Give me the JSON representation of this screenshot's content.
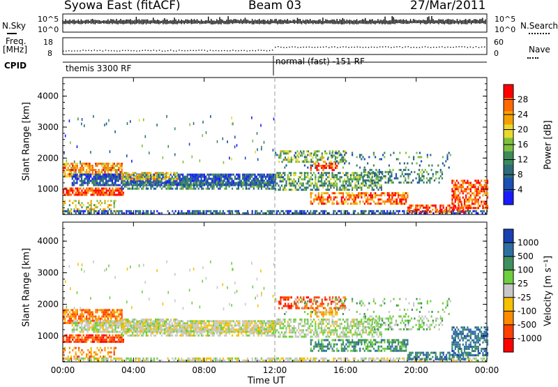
{
  "header": {
    "station": "Syowa East (fitACF)",
    "beam": "Beam 03",
    "date": "27/Mar/2011"
  },
  "strips": {
    "nsky_label": "N.Sky",
    "nsky_ticks": [
      "10^5",
      "10^0"
    ],
    "nsearch_label": "N.Search",
    "nsearch_ticks": [
      "10^5",
      "10^0"
    ],
    "freq_label": "Freq.",
    "freq_unit": "[MHz]",
    "freq_ticks": [
      "18",
      "8"
    ],
    "nave_label": "Nave",
    "nave_ticks": [
      "60",
      "0"
    ],
    "cpid_label": "CPID",
    "cpid_segments": [
      {
        "start_hour": 0,
        "text": "themis 3300 RF"
      },
      {
        "start_hour": 12,
        "text": "normal (fast) -151 RF"
      }
    ]
  },
  "chart_data": [
    {
      "type": "heatmap",
      "title": "",
      "xlabel": "",
      "ylabel": "Slant Range [km]",
      "xlim": [
        0,
        24
      ],
      "ylim": [
        180,
        4600
      ],
      "yticks": [
        "1000",
        "2000",
        "3000",
        "4000"
      ],
      "colorbar_label": "Power [dB]",
      "colorbar_ticks": [
        "28",
        "24",
        "20",
        "16",
        "12",
        "8",
        "4"
      ],
      "colorbar_range": [
        0,
        32
      ],
      "colormap": [
        "#1a1aff",
        "#1a4fb3",
        "#2f6a7a",
        "#3c8a5a",
        "#7fbf3f",
        "#e8d830",
        "#f5a000",
        "#ff6a00",
        "#ff0000"
      ]
    },
    {
      "type": "heatmap",
      "title": "",
      "xlabel": "Time UT",
      "ylabel": "Slant Range [km]",
      "xlim": [
        0,
        24
      ],
      "ylim": [
        180,
        4600
      ],
      "xticks": [
        "00:00",
        "04:00",
        "08:00",
        "12:00",
        "16:00",
        "20:00",
        "00:00"
      ],
      "yticks": [
        "1000",
        "2000",
        "3000",
        "4000"
      ],
      "colorbar_label": "Velocity [m s⁻¹]",
      "colorbar_ticks": [
        "1000",
        "500",
        "100",
        "25",
        "-25",
        "-100",
        "-500",
        "-1000"
      ],
      "colormap": [
        "#1a3fb0",
        "#2f6fa0",
        "#3f8f5f",
        "#6fcf3f",
        "#c8c8c8",
        "#f5c000",
        "#ff8a00",
        "#ff4000",
        "#ff0000"
      ]
    }
  ],
  "colors": {
    "axis": "#000000",
    "background": "#ffffff"
  }
}
